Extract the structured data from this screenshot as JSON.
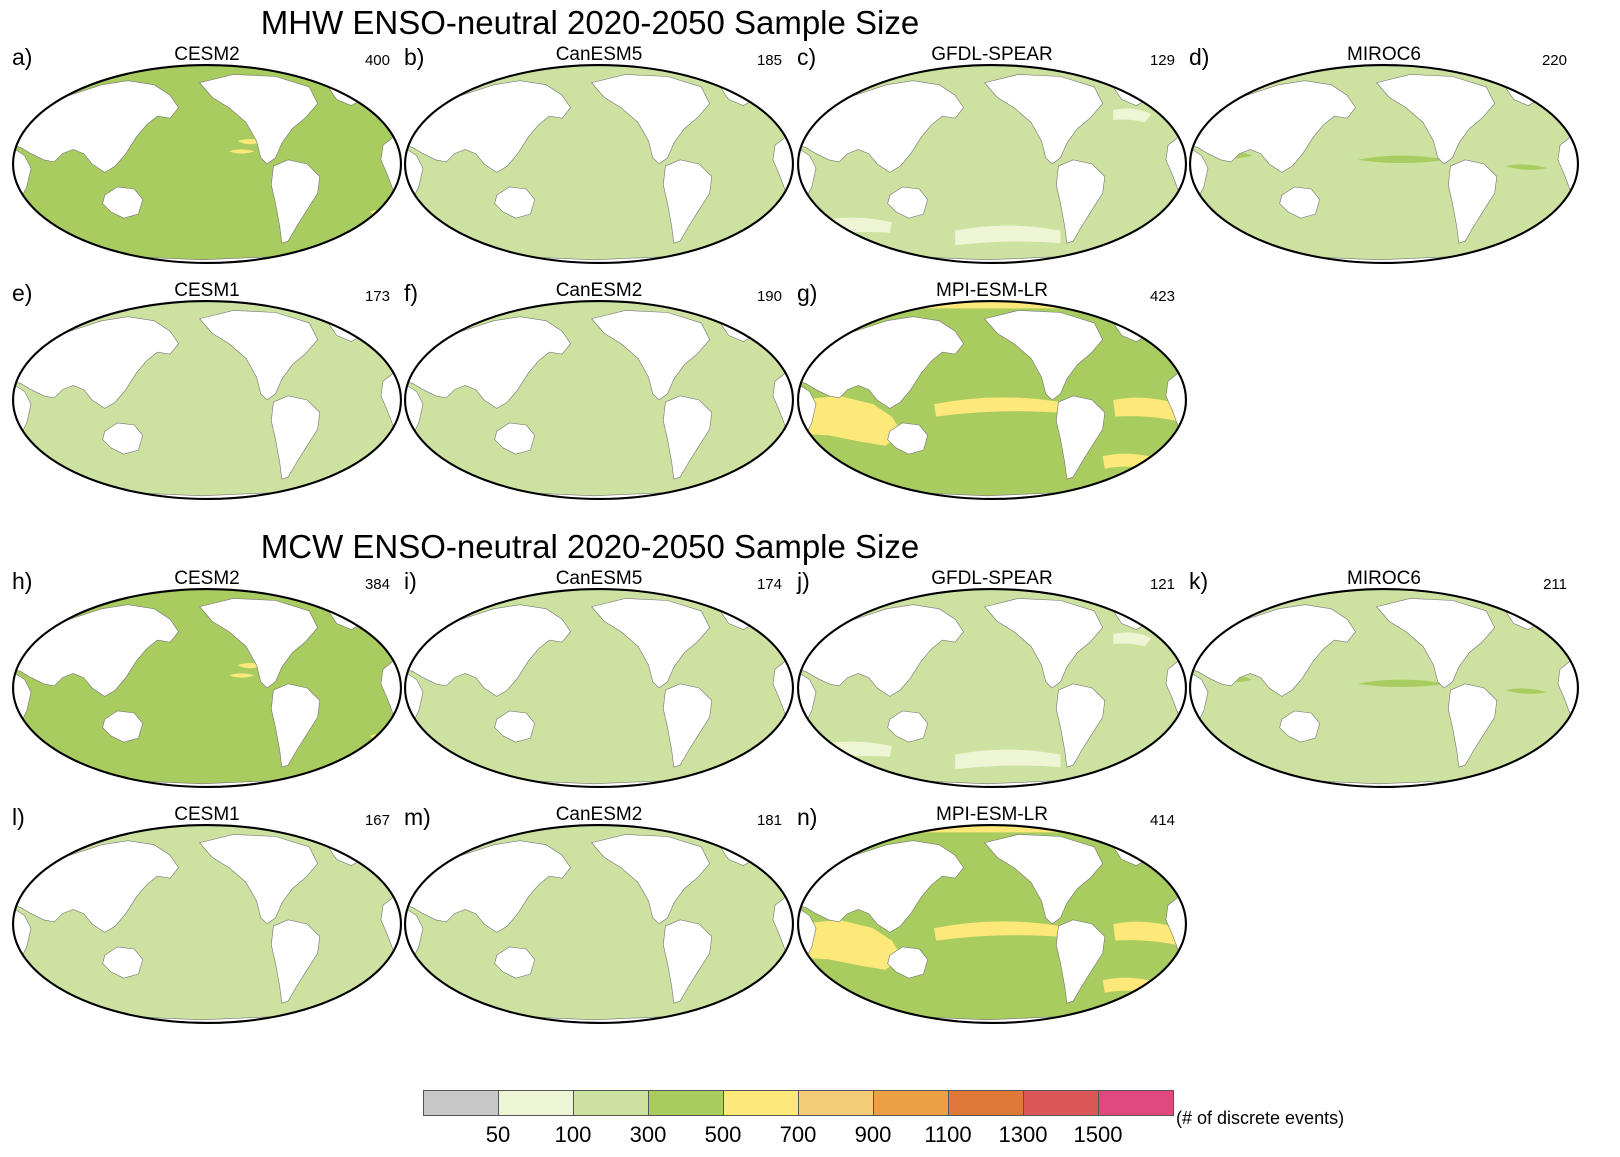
{
  "titles": {
    "top": "MHW ENSO-neutral 2020-2050 Sample Size",
    "bottom": "MCW ENSO-neutral 2020-2050 Sample Size"
  },
  "panels": [
    {
      "letter": "a)",
      "model": "CESM2",
      "count": "400",
      "base": "#a8cc60",
      "spots": "yellow-small"
    },
    {
      "letter": "b)",
      "model": "CanESM5",
      "count": "185",
      "base": "#cde2a0",
      "spots": "none"
    },
    {
      "letter": "c)",
      "model": "GFDL-SPEAR",
      "count": "129",
      "base": "#cde2a0",
      "spots": "pale"
    },
    {
      "letter": "d)",
      "model": "MIROC6",
      "count": "220",
      "base": "#cde2a0",
      "spots": "green-band"
    },
    {
      "letter": "e)",
      "model": "CESM1",
      "count": "173",
      "base": "#cde2a0",
      "spots": "none"
    },
    {
      "letter": "f)",
      "model": "CanESM2",
      "count": "190",
      "base": "#cde2a0",
      "spots": "none"
    },
    {
      "letter": "g)",
      "model": "MPI-ESM-LR",
      "count": "423",
      "base": "#a8cc60",
      "spots": "yellow-large"
    },
    {
      "letter": "h)",
      "model": "CESM2",
      "count": "384",
      "base": "#a8cc60",
      "spots": "yellow-small"
    },
    {
      "letter": "i)",
      "model": "CanESM5",
      "count": "174",
      "base": "#cde2a0",
      "spots": "none"
    },
    {
      "letter": "j)",
      "model": "GFDL-SPEAR",
      "count": "121",
      "base": "#cde2a0",
      "spots": "pale"
    },
    {
      "letter": "k)",
      "model": "MIROC6",
      "count": "211",
      "base": "#cde2a0",
      "spots": "green-band"
    },
    {
      "letter": "l)",
      "model": "CESM1",
      "count": "167",
      "base": "#cde2a0",
      "spots": "none"
    },
    {
      "letter": "m)",
      "model": "CanESM2",
      "count": "181",
      "base": "#cde2a0",
      "spots": "none"
    },
    {
      "letter": "n)",
      "model": "MPI-ESM-LR",
      "count": "414",
      "base": "#a8cc60",
      "spots": "yellow-large"
    }
  ],
  "colorbar": {
    "colors": [
      "#c8c8c8",
      "#eef5d4",
      "#cde2a0",
      "#a8cc60",
      "#fde87a",
      "#f4cc78",
      "#eca044",
      "#e07838",
      "#dc5858",
      "#e0487e"
    ],
    "ticks": [
      "50",
      "100",
      "300",
      "500",
      "700",
      "900",
      "1100",
      "1300",
      "1500"
    ],
    "label": "(# of discrete events)"
  },
  "palette": {
    "land": "#ffffff",
    "outline": "#000000",
    "yellow": "#fde87a",
    "pale": "#eef5d4",
    "green": "#a8cc60"
  }
}
